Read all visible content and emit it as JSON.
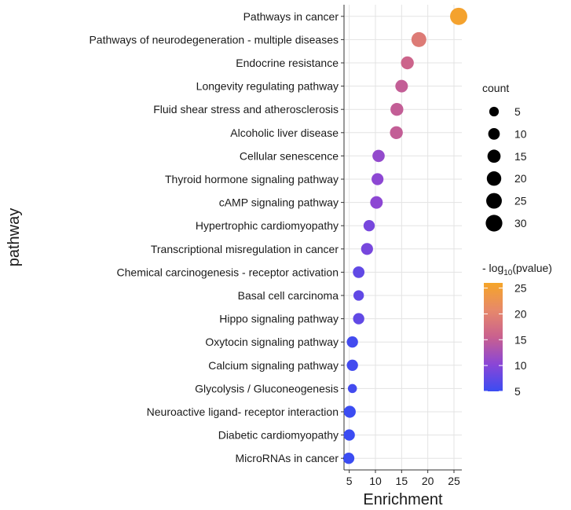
{
  "chart_data": {
    "type": "scatter",
    "xlabel": "Enrichment",
    "ylabel": "pathway",
    "xlim": [
      4,
      26.5
    ],
    "x_ticks": [
      5,
      10,
      15,
      20,
      25
    ],
    "grid": true,
    "points": [
      {
        "pathway": "Pathways in cancer",
        "enrichment": 25.9,
        "count": 33,
        "neg_log10_p": 25.5
      },
      {
        "pathway": "Pathways of neurodegeneration -  multiple diseases",
        "enrichment": 18.3,
        "count": 22,
        "neg_log10_p": 19
      },
      {
        "pathway": "Endocrine resistance",
        "enrichment": 16.1,
        "count": 14,
        "neg_log10_p": 16
      },
      {
        "pathway": "Longevity regulating pathway",
        "enrichment": 15.0,
        "count": 13,
        "neg_log10_p": 15
      },
      {
        "pathway": "Fluid shear stress and atherosclerosis",
        "enrichment": 14.1,
        "count": 14,
        "neg_log10_p": 15
      },
      {
        "pathway": "Alcoholic liver disease",
        "enrichment": 14.0,
        "count": 14,
        "neg_log10_p": 15
      },
      {
        "pathway": "Cellular senescence",
        "enrichment": 10.6,
        "count": 12,
        "neg_log10_p": 11
      },
      {
        "pathway": "Thyroid hormone signaling pathway",
        "enrichment": 10.4,
        "count": 11,
        "neg_log10_p": 10.5
      },
      {
        "pathway": "cAMP signaling pathway",
        "enrichment": 10.2,
        "count": 13,
        "neg_log10_p": 10.5
      },
      {
        "pathway": "Hypertrophic cardiomyopathy",
        "enrichment": 8.8,
        "count": 9,
        "neg_log10_p": 9
      },
      {
        "pathway": "Transcriptional misregulation in cancer",
        "enrichment": 8.4,
        "count": 11,
        "neg_log10_p": 9
      },
      {
        "pathway": "Chemical carcinogenesis -  receptor activation",
        "enrichment": 6.8,
        "count": 10,
        "neg_log10_p": 7.5
      },
      {
        "pathway": "Basal cell carcinoma",
        "enrichment": 6.8,
        "count": 7,
        "neg_log10_p": 7.5
      },
      {
        "pathway": "Hippo signaling pathway",
        "enrichment": 6.8,
        "count": 9,
        "neg_log10_p": 7.5
      },
      {
        "pathway": "Oxytocin signaling pathway",
        "enrichment": 5.6,
        "count": 9,
        "neg_log10_p": 5.5
      },
      {
        "pathway": "Calcium signaling pathway",
        "enrichment": 5.6,
        "count": 9,
        "neg_log10_p": 5.5
      },
      {
        "pathway": "Glycolysis / Gluconeogenesis",
        "enrichment": 5.6,
        "count": 4,
        "neg_log10_p": 5.5
      },
      {
        "pathway": "Neuroactive ligand- receptor interaction",
        "enrichment": 5.1,
        "count": 11,
        "neg_log10_p": 5
      },
      {
        "pathway": "Diabetic cardiomyopathy",
        "enrichment": 5.0,
        "count": 9,
        "neg_log10_p": 5
      },
      {
        "pathway": "MicroRNAs in cancer",
        "enrichment": 4.9,
        "count": 9,
        "neg_log10_p": 5
      }
    ],
    "size_legend": {
      "title": "count",
      "values": [
        5,
        10,
        15,
        20,
        25,
        30
      ]
    },
    "color_legend": {
      "title_prefix": "- log",
      "title_sub": "10",
      "title_suffix": "(pvalue)",
      "min": 5,
      "max": 26,
      "ticks": [
        5,
        10,
        15,
        20,
        25
      ],
      "colors": [
        "#3b4cf2",
        "#8a46d6",
        "#c9608f",
        "#e7896a",
        "#f5a528"
      ]
    }
  }
}
